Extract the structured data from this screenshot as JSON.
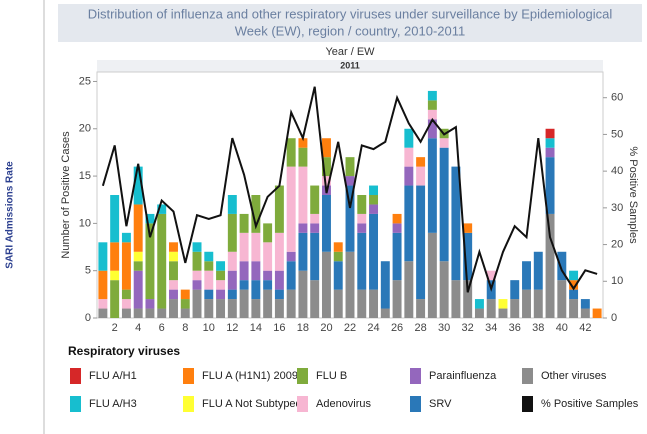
{
  "chart_data": {
    "type": "bar",
    "title": "Distribution of influenza and other respiratory viruses under surveillance by Epidemiological",
    "title_line2": "Week (EW), region / country, 2010-2011",
    "x_header": "Year / EW",
    "x_group": "2011",
    "side_label": "SARI Admissions Rate",
    "ylabel": "Number of Positive Cases",
    "y2label": "% Positive Samples",
    "legend_title": "Respiratory viruses",
    "categories": [
      null,
      "2",
      null,
      "4",
      null,
      "6",
      null,
      "8",
      null,
      "10",
      null,
      "12",
      null,
      "14",
      null,
      "16",
      null,
      "18",
      null,
      "20",
      null,
      "22",
      null,
      "24",
      null,
      "26",
      null,
      "28",
      null,
      "30",
      null,
      "32",
      null,
      "34",
      null,
      "36",
      null,
      "38",
      null,
      "40",
      null,
      "42",
      null
    ],
    "ylim": [
      0,
      26
    ],
    "yticks": [
      0,
      5,
      10,
      15,
      20,
      25
    ],
    "y2lim": [
      0,
      67
    ],
    "y2ticks": [
      0,
      10,
      20,
      30,
      40,
      50,
      60
    ],
    "series": [
      {
        "name": "Other viruses",
        "color": "#8c8c8c",
        "values": [
          1,
          0,
          1,
          1,
          1,
          1,
          2,
          1,
          3,
          2,
          2,
          2,
          3,
          2,
          3,
          2,
          3,
          5,
          4,
          7,
          3,
          7,
          3,
          3,
          1,
          4,
          6,
          2,
          9,
          6,
          4,
          4,
          1,
          2,
          1,
          2,
          3,
          3,
          11,
          4,
          2,
          1,
          0
        ]
      },
      {
        "name": "SRV",
        "color": "#2a78b8",
        "values": [
          0,
          0,
          0,
          0,
          0,
          0,
          0,
          0,
          0,
          1,
          0,
          1,
          1,
          2,
          1,
          1,
          3,
          4,
          5,
          6,
          3,
          7,
          6,
          8,
          5,
          5,
          8,
          12,
          10,
          12,
          12,
          5,
          0,
          2,
          0,
          2,
          3,
          4,
          6,
          3,
          1,
          1,
          0
        ]
      },
      {
        "name": "Parainfluenza",
        "color": "#9467bd",
        "values": [
          0,
          0,
          0,
          4,
          1,
          0,
          1,
          0,
          1,
          0,
          1,
          2,
          2,
          2,
          1,
          2,
          1,
          1,
          1,
          1,
          0,
          1,
          1,
          1,
          0,
          1,
          2,
          0,
          2,
          0,
          0,
          0,
          0,
          0,
          0,
          0,
          0,
          0,
          1,
          0,
          0,
          0,
          0
        ]
      },
      {
        "name": "Adenovirus",
        "color": "#f7b6d2",
        "values": [
          1,
          0,
          1,
          0,
          0,
          0,
          1,
          0,
          1,
          2,
          1,
          2,
          3,
          3,
          3,
          4,
          9,
          6,
          1,
          1,
          0,
          0,
          1,
          0,
          0,
          0,
          2,
          2,
          1,
          1,
          0,
          0,
          0,
          1,
          0,
          0,
          0,
          0,
          0,
          0,
          0,
          0,
          0
        ]
      },
      {
        "name": "FLU B",
        "color": "#7fab3c",
        "values": [
          0,
          4,
          1,
          1,
          8,
          10,
          2,
          1,
          2,
          1,
          1,
          4,
          2,
          4,
          2,
          5,
          3,
          2,
          3,
          2,
          1,
          2,
          2,
          1,
          0,
          0,
          0,
          0,
          1,
          1,
          0,
          0,
          0,
          0,
          0,
          0,
          0,
          0,
          0,
          0,
          0,
          0,
          0
        ]
      },
      {
        "name": "FLU A Not Subtyped",
        "color": "#ffff33",
        "values": [
          0,
          1,
          0,
          1,
          0,
          0,
          1,
          0,
          0,
          0,
          0,
          0,
          0,
          0,
          0,
          0,
          0,
          0,
          0,
          0,
          0,
          0,
          0,
          0,
          0,
          0,
          0,
          0,
          0,
          0,
          0,
          0,
          0,
          0,
          1,
          0,
          0,
          0,
          0,
          0,
          0,
          0,
          0
        ]
      },
      {
        "name": "FLU A (H1N1) 2009",
        "color": "#ff7f0e",
        "values": [
          3,
          3,
          5,
          5,
          0,
          0,
          1,
          1,
          0,
          0,
          0,
          0,
          0,
          0,
          0,
          0,
          0,
          1,
          0,
          2,
          1,
          0,
          0,
          0,
          0,
          1,
          0,
          1,
          0,
          0,
          0,
          1,
          0,
          0,
          0,
          0,
          0,
          0,
          0,
          0,
          1,
          0,
          1
        ]
      },
      {
        "name": "FLU A/H3",
        "color": "#17becf",
        "values": [
          3,
          5,
          1,
          4,
          1,
          1,
          0,
          0,
          1,
          1,
          1,
          2,
          0,
          0,
          0,
          0,
          0,
          0,
          0,
          0,
          0,
          0,
          0,
          1,
          0,
          0,
          2,
          0,
          1,
          0,
          0,
          0,
          1,
          0,
          0,
          0,
          0,
          0,
          1,
          0,
          1,
          0,
          0
        ]
      },
      {
        "name": "FLU A/H1",
        "color": "#d62728",
        "values": [
          0,
          0,
          0,
          0,
          0,
          0,
          0,
          0,
          0,
          0,
          0,
          0,
          0,
          0,
          0,
          0,
          0,
          0,
          0,
          0,
          0,
          0,
          0,
          0,
          0,
          0,
          0,
          0,
          0,
          0,
          0,
          0,
          0,
          0,
          0,
          0,
          0,
          0,
          1,
          0,
          0,
          0,
          0
        ]
      },
      {
        "name": "% Positive Samples",
        "color": "#111111",
        "type": "line",
        "axis": "y2",
        "values": [
          36,
          47,
          25,
          42,
          22,
          32,
          29,
          15,
          28,
          27,
          28,
          49,
          39,
          25,
          33,
          36,
          56,
          49,
          63,
          34,
          48,
          30,
          47,
          46,
          48,
          60,
          53,
          48,
          54,
          50,
          52,
          7,
          18,
          8,
          18,
          25,
          22,
          49,
          22,
          13,
          8,
          13,
          12
        ]
      }
    ]
  }
}
